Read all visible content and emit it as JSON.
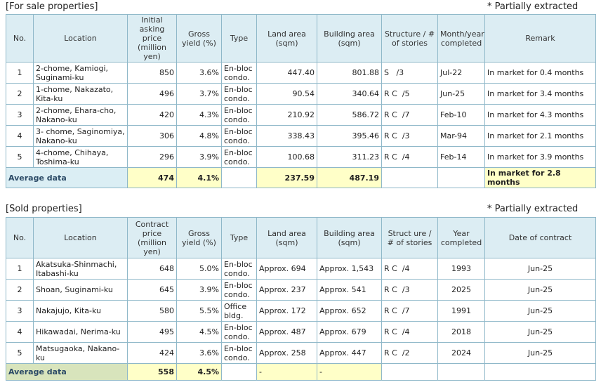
{
  "for_sale": {
    "caption": "[For sale properties]",
    "note": "* Partially extracted",
    "headers": [
      "No.",
      "Location",
      "Initial asking price (million yen)",
      "Gross yield (%)",
      "Type",
      "Land area (sqm)",
      "Building area (sqm)",
      "Structure / # of stories",
      "Month/year completed",
      "Remark"
    ],
    "rows": [
      [
        "1",
        "2-chome, Kamiogi, Suginami-ku",
        "850",
        "3.6%",
        "En-bloc condo.",
        "447.40",
        "801.88",
        "S   /3",
        "Jul-22",
        "In market for 0.4 months"
      ],
      [
        "2",
        "1-chome, Nakazato, Kita-ku",
        "496",
        "3.7%",
        "En-bloc condo.",
        "90.54",
        "340.64",
        "R C  /5",
        "Jun-25",
        "In market for 3.4 months"
      ],
      [
        "3",
        "2-chome, Ehara-cho, Nakano-ku",
        "420",
        "4.3%",
        "En-bloc condo.",
        "210.92",
        "586.72",
        "R C  /7",
        "Feb-10",
        "In market for 4.3 months"
      ],
      [
        "4",
        "3- chome, Saginomiya, Nakano-ku",
        "306",
        "4.8%",
        "En-bloc condo.",
        "338.43",
        "395.46",
        "R C  /3",
        "Mar-94",
        "In market for 2.1 months"
      ],
      [
        "5",
        "4-chome, Chihaya, Toshima-ku",
        "296",
        "3.9%",
        "En-bloc condo.",
        "100.68",
        "311.23",
        "R C  /4",
        "Feb-14",
        "In market for 3.9 months"
      ]
    ],
    "average": {
      "label": "Average data",
      "price": "474",
      "yield": "4.1%",
      "land": "237.59",
      "building": "487.19",
      "remark": "In market for 2.8 months"
    }
  },
  "sold": {
    "caption": "[Sold properties]",
    "note": "* Partially extracted",
    "headers": [
      "No.",
      "Location",
      "Contract price (million yen)",
      "Gross yield (%)",
      "Type",
      "Land area (sqm)",
      "Building area (sqm)",
      "Struct ure / # of stories",
      "Year completed",
      "Date of contract"
    ],
    "rows": [
      [
        "1",
        "Akatsuka-Shinmachi, Itabashi-ku",
        "648",
        "5.0%",
        "En-bloc condo.",
        "Approx. 694",
        "Approx. 1,543",
        "R C  /4",
        "1993",
        "Jun-25"
      ],
      [
        "2",
        "Shoan, Suginami-ku",
        "645",
        "3.9%",
        "En-bloc condo.",
        "Approx. 237",
        "Approx. 541",
        "R C  /3",
        "2025",
        "Jun-25"
      ],
      [
        "3",
        "Nakajujo, Kita-ku",
        "580",
        "5.5%",
        "Office bldg.",
        "Approx. 172",
        "Approx. 652",
        "R C  /7",
        "1991",
        "Jun-25"
      ],
      [
        "4",
        "Hikawadai, Nerima-ku",
        "495",
        "4.5%",
        "En-bloc condo.",
        "Approx. 487",
        "Approx. 679",
        "R C  /4",
        "2018",
        "Jun-25"
      ],
      [
        "5",
        "Matsugaoka, Nakano-ku",
        "424",
        "3.6%",
        "En-bloc condo.",
        "Approx. 258",
        "Approx. 447",
        "R C  /2",
        "2024",
        "Jun-25"
      ]
    ],
    "average": {
      "label": "Average data",
      "price": "558",
      "yield": "4.5%",
      "land": "-",
      "building": "-"
    }
  }
}
